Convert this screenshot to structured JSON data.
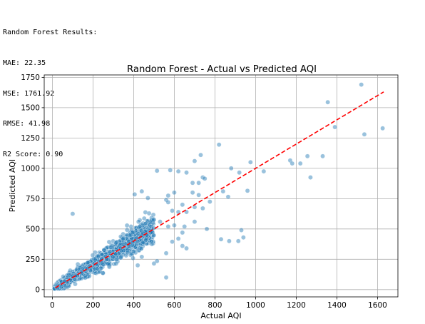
{
  "console_output": {
    "lines": [
      "Random Forest Results:",
      "MAE: 22.35",
      "MSE: 1761.92",
      "RMSE: 41.98",
      "R2 Score: 0.90"
    ]
  },
  "chart_data": {
    "type": "scatter",
    "title": "Random Forest - Actual vs Predicted AQI",
    "xlabel": "Actual AQI",
    "ylabel": "Predicted AQI",
    "xlim": [
      -40,
      1700
    ],
    "ylim": [
      -60,
      1770
    ],
    "x_ticks": [
      0,
      200,
      400,
      600,
      800,
      1000,
      1200,
      1400,
      1600
    ],
    "y_ticks": [
      0,
      250,
      500,
      750,
      1000,
      1250,
      1500,
      1750
    ],
    "grid": true,
    "point_color": "#1f77b4",
    "point_alpha": 0.45,
    "reference_line": {
      "style": "dashed",
      "color": "#ff0000",
      "from": [
        15,
        15
      ],
      "to": [
        1630,
        1630
      ]
    },
    "dense_cluster": {
      "x_range": [
        10,
        500
      ],
      "relation": "predicted ≈ actual",
      "approx_count": 1400
    },
    "points": [
      [
        1520,
        1690
      ],
      [
        1355,
        1545
      ],
      [
        1390,
        1340
      ],
      [
        1535,
        1280
      ],
      [
        1625,
        1330
      ],
      [
        820,
        1195
      ],
      [
        730,
        1110
      ],
      [
        700,
        1060
      ],
      [
        975,
        1050
      ],
      [
        1170,
        1065
      ],
      [
        1180,
        1040
      ],
      [
        1220,
        1040
      ],
      [
        1255,
        1100
      ],
      [
        1330,
        1100
      ],
      [
        1270,
        925
      ],
      [
        1040,
        975
      ],
      [
        920,
        965
      ],
      [
        880,
        1000
      ],
      [
        740,
        925
      ],
      [
        750,
        915
      ],
      [
        720,
        880
      ],
      [
        690,
        880
      ],
      [
        660,
        965
      ],
      [
        620,
        975
      ],
      [
        580,
        985
      ],
      [
        515,
        980
      ],
      [
        405,
        785
      ],
      [
        440,
        810
      ],
      [
        570,
        775
      ],
      [
        600,
        800
      ],
      [
        690,
        800
      ],
      [
        640,
        700
      ],
      [
        720,
        780
      ],
      [
        775,
        725
      ],
      [
        840,
        810
      ],
      [
        865,
        765
      ],
      [
        960,
        815
      ],
      [
        660,
        640
      ],
      [
        700,
        680
      ],
      [
        740,
        670
      ],
      [
        620,
        640
      ],
      [
        590,
        650
      ],
      [
        560,
        740
      ],
      [
        570,
        720
      ],
      [
        470,
        755
      ],
      [
        100,
        625
      ],
      [
        600,
        530
      ],
      [
        570,
        520
      ],
      [
        530,
        560
      ],
      [
        640,
        470
      ],
      [
        620,
        420
      ],
      [
        640,
        360
      ],
      [
        660,
        340
      ],
      [
        590,
        395
      ],
      [
        560,
        300
      ],
      [
        650,
        520
      ],
      [
        700,
        560
      ],
      [
        760,
        500
      ],
      [
        830,
        415
      ],
      [
        870,
        400
      ],
      [
        930,
        490
      ],
      [
        940,
        430
      ],
      [
        915,
        400
      ],
      [
        560,
        100
      ],
      [
        440,
        270
      ],
      [
        500,
        215
      ],
      [
        515,
        235
      ],
      [
        460,
        410
      ],
      [
        420,
        200
      ]
    ]
  }
}
